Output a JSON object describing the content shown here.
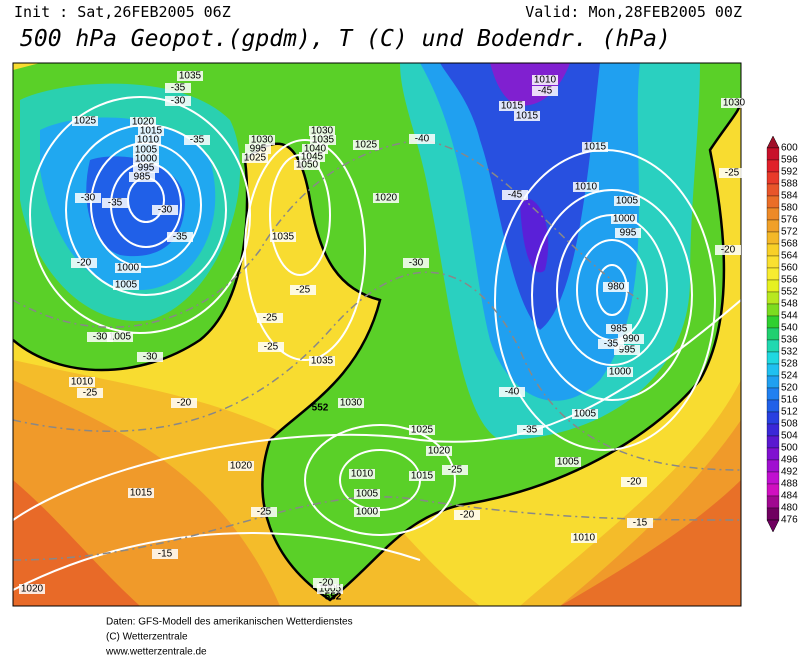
{
  "header": {
    "init": "Init : Sat,26FEB2005 06Z",
    "valid": "Valid: Mon,28FEB2005 00Z",
    "title": "500 hPa Geopot.(gpdm), T (C) und Bodendr. (hPa)"
  },
  "colorbar": {
    "levels": [
      600,
      596,
      592,
      588,
      584,
      580,
      576,
      572,
      568,
      564,
      560,
      556,
      552,
      548,
      544,
      540,
      536,
      532,
      528,
      524,
      520,
      516,
      512,
      508,
      504,
      500,
      496,
      492,
      488,
      484,
      480,
      476
    ],
    "colors": [
      "#a0102a",
      "#c8102a",
      "#e0202a",
      "#e83a2a",
      "#e8552a",
      "#ea6e28",
      "#ee8a28",
      "#f0a028",
      "#f4b828",
      "#f8d028",
      "#fae030",
      "#f8ec30",
      "#e6f020",
      "#b8e820",
      "#7cdc20",
      "#30d030",
      "#20d070",
      "#20d8b0",
      "#20d8e0",
      "#20c0f0",
      "#20a0f0",
      "#2080f0",
      "#2060e8",
      "#2840e0",
      "#3a28d8",
      "#5a18d0",
      "#8010d0",
      "#a010d0",
      "#c010d0",
      "#d010c0",
      "#a00890",
      "#700060"
    ]
  },
  "isobar_labels": [
    1035,
    1025,
    1020,
    1015,
    1010,
    1005,
    1000,
    995,
    985,
    1000,
    1005,
    1005,
    1010,
    1030,
    995,
    1025,
    1030,
    1035,
    1040,
    1045,
    1050,
    1025,
    1020,
    1035,
    1035,
    1030,
    1010,
    1015,
    1015,
    1015,
    1010,
    1005,
    1000,
    995,
    980,
    985,
    990,
    995,
    1000,
    1005,
    1025,
    1020,
    1010,
    1015,
    1005,
    1000,
    1005,
    1010,
    1020,
    1015,
    1020,
    1005,
    1030
  ],
  "temperature_labels": [
    -35,
    -30,
    -35,
    -30,
    -35,
    -30,
    -35,
    -20,
    -30,
    -30,
    -25,
    -20,
    -25,
    -25,
    -25,
    -40,
    -30,
    -45,
    -45,
    -35,
    -40,
    -35,
    -25,
    -20,
    -20,
    -15,
    -15,
    -25,
    -20,
    -25,
    -20
  ],
  "contour_552_labels": [
    552,
    552
  ],
  "footer": [
    "Daten: GFS-Modell des amerikanischen Wetterdienstes",
    "(C) Wetterzentrale",
    "www.wetterzentrale.de"
  ]
}
